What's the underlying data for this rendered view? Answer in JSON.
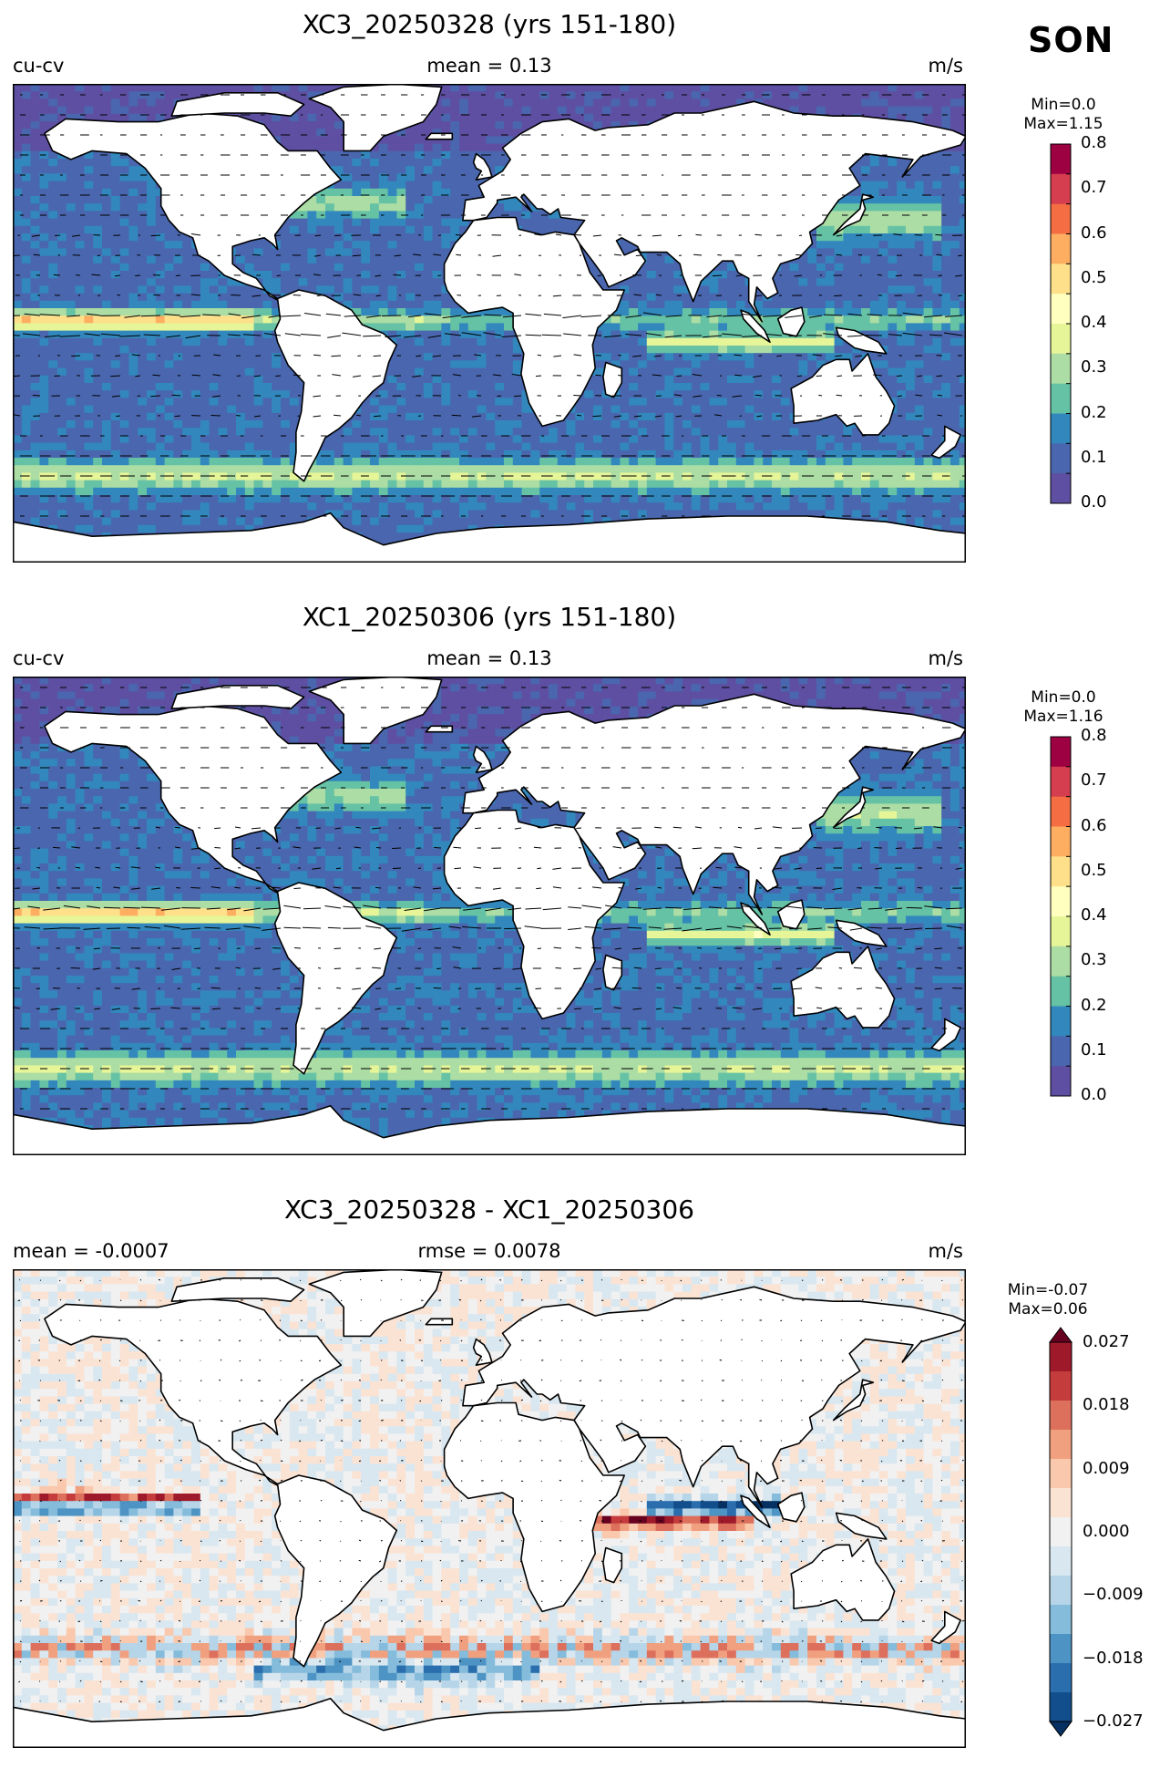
{
  "season": "SON",
  "panels": [
    {
      "title": "XC3_20250328 (yrs 151-180)",
      "left_label": "cu-cv",
      "center_label": "mean = 0.13",
      "units": "m/s",
      "min_label": "Min=0.0",
      "max_label": "Max=1.15"
    },
    {
      "title": "XC1_20250306 (yrs 151-180)",
      "left_label": "cu-cv",
      "center_label": "mean = 0.13",
      "units": "m/s",
      "min_label": "Min=0.0",
      "max_label": "Max=1.16"
    },
    {
      "title": "XC3_20250328 - XC1_20250306",
      "left_label": "mean = -0.0007",
      "center_label": "rmse = 0.0078",
      "units": "m/s",
      "min_label": "Min=-0.07",
      "max_label": "Max=0.06"
    }
  ],
  "colorbars": {
    "speed": {
      "ticks": [
        "0.8",
        "0.7",
        "0.6",
        "0.5",
        "0.4",
        "0.3",
        "0.2",
        "0.1",
        "0.0"
      ],
      "colors": [
        "#9e0142",
        "#d53e4f",
        "#f46d43",
        "#fdae61",
        "#fee08b",
        "#ffffbf",
        "#e6f598",
        "#abdda4",
        "#66c2a5",
        "#3288bd",
        "#4a66ae",
        "#5e4fa2"
      ]
    },
    "diff": {
      "ticks": [
        "0.027",
        "0.018",
        "0.009",
        "0.000",
        "−0.009",
        "−0.018",
        "−0.027"
      ],
      "colors": [
        "#67001f",
        "#9e1a2b",
        "#c43c3c",
        "#dd6f5d",
        "#f0a07f",
        "#f9c8ad",
        "#fbe3d4",
        "#f1f1f1",
        "#d8e7f0",
        "#b6d5e8",
        "#85bcdb",
        "#4d94c4",
        "#2a6eae",
        "#114e8b",
        "#053061"
      ]
    }
  }
}
